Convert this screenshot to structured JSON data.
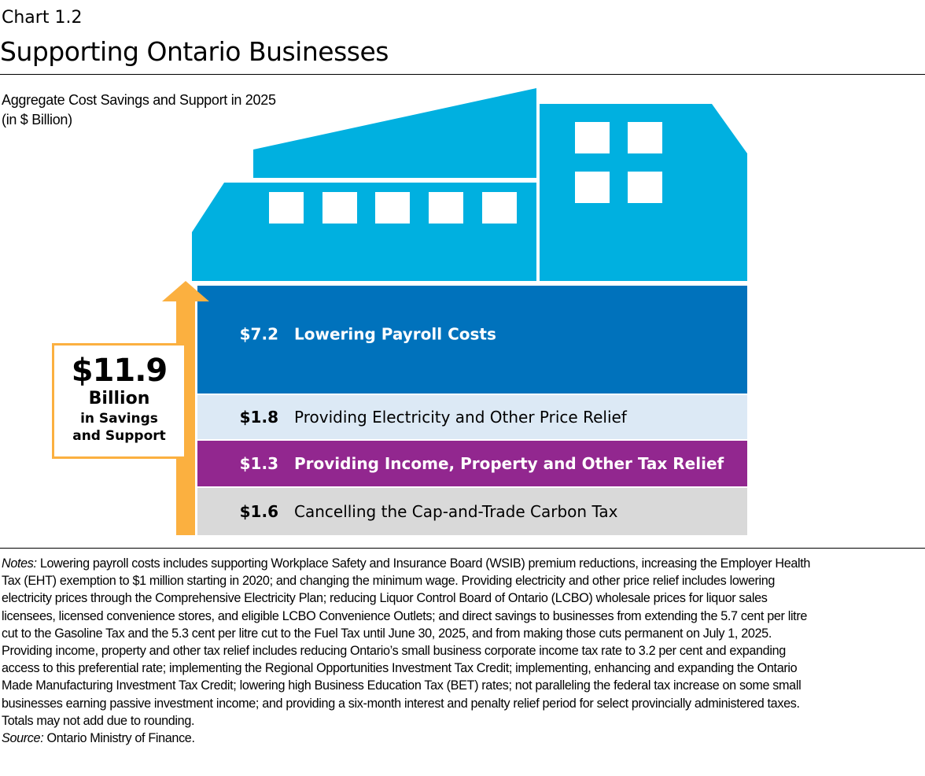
{
  "header": {
    "chart_label": "Chart 1.2",
    "title": "Supporting Ontario Businesses",
    "subtitle_line1": "Aggregate Cost Savings and Support in 2025",
    "subtitle_line2": "(in $ Billion)"
  },
  "total": {
    "value": "$11.9",
    "unit": "Billion",
    "line1": "in Savings",
    "line2": "and Support"
  },
  "colors": {
    "building": "#00B0E0",
    "payroll": "#0072BC",
    "electricity": "#DCE9F5",
    "tax_relief": "#92278F",
    "carbon_tax": "#D9D9D9",
    "arrow": "#FBB040"
  },
  "chart_data": {
    "type": "bar",
    "stacked": true,
    "title": "Supporting Ontario Businesses",
    "subtitle": "Aggregate Cost Savings and Support in 2025 (in $ Billion)",
    "total": 11.9,
    "categories": [
      "Lowering Payroll Costs",
      "Providing Electricity and Other Price Relief",
      "Providing Income, Property and Other Tax Relief",
      "Cancelling the Cap-and-Trade Carbon Tax"
    ],
    "values": [
      7.2,
      1.8,
      1.3,
      1.6
    ],
    "value_labels": [
      "$7.2",
      "$1.8",
      "$1.3",
      "$1.6"
    ]
  },
  "notes": {
    "lines": [
      {
        "italic": "Notes:",
        "text": " Lowering payroll costs includes supporting Workplace Safety and Insurance Board (WSIB)  premium reductions, increasing the Employer Health"
      },
      {
        "text": "Tax (EHT)  exemption to $1 million starting in 2020; and changing the minimum wage. Providing electricity and other price relief includes lowering"
      },
      {
        "text": "electricity prices through the Comprehensive Electricity Plan; reducing Liquor Control Board of Ontario (LCBO)  wholesale prices for liquor sales"
      },
      {
        "text": "licensees, licensed convenience stores, and eligible LCBO  Convenience Outlets; and direct savings to businesses from extending the 5.7 cent per litre"
      },
      {
        "text": "cut to the Gasoline Tax and the 5.3 cent per litre cut to the Fuel Tax until June 30, 2025, and from making those cuts permanent on July 1, 2025."
      },
      {
        "text": "Providing income, property and other tax relief includes reducing Ontario’s small business corporate income tax rate to 3.2 per cent and expanding"
      },
      {
        "text": "access to this preferential rate; implementing the Regional Opportunities Investment Tax Credit; implementing, enhancing and expanding the Ontario"
      },
      {
        "text": "Made Manufacturing Investment Tax Credit; lowering high Business Education Tax (BET) rates; not paralleling the federal tax increase on some small"
      },
      {
        "text": "businesses earning passive investment income; and providing a six-month interest and penalty relief period for select provincially administered taxes."
      },
      {
        "text": "Totals may not add due to rounding."
      },
      {
        "italic": "Source:",
        "text": " Ontario Ministry of Finance."
      }
    ]
  }
}
